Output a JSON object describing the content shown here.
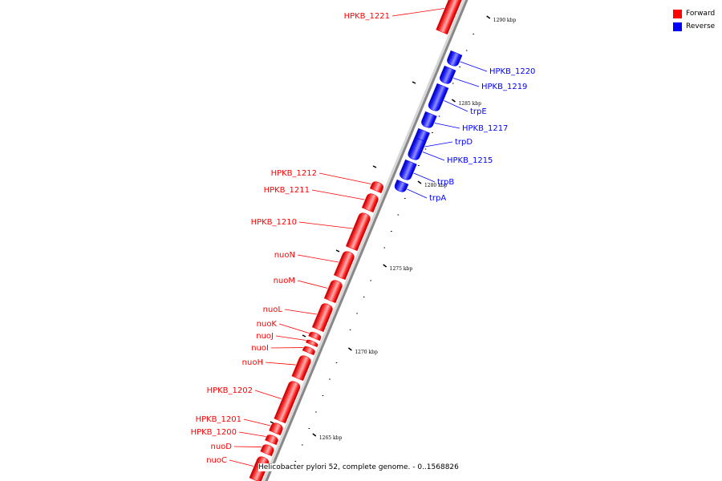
{
  "colors": {
    "forward": "#ff0000",
    "reverse": "#0000ff",
    "backbone": "#888888"
  },
  "legend": [
    {
      "label": "Forward",
      "color": "#ff0000"
    },
    {
      "label": "Reverse",
      "color": "#0000ff"
    }
  ],
  "caption": "Helicobacter pylori 52, complete genome. - 0..1568826",
  "ticks": [
    {
      "label": "1290 kbp"
    },
    {
      "label": "1285 kbp"
    },
    {
      "label": "1280 kbp"
    },
    {
      "label": "1275 kbp"
    },
    {
      "label": "1270 kbp"
    },
    {
      "label": "1265 kbp"
    }
  ],
  "genes": [
    {
      "name": "HPKB_1221",
      "strand": "forward"
    },
    {
      "name": "HPKB_1220",
      "strand": "reverse"
    },
    {
      "name": "HPKB_1219",
      "strand": "reverse"
    },
    {
      "name": "trpE",
      "strand": "reverse"
    },
    {
      "name": "HPKB_1217",
      "strand": "reverse"
    },
    {
      "name": "trpD",
      "strand": "reverse"
    },
    {
      "name": "HPKB_1215",
      "strand": "reverse"
    },
    {
      "name": "trpB",
      "strand": "reverse"
    },
    {
      "name": "trpA",
      "strand": "reverse"
    },
    {
      "name": "HPKB_1212",
      "strand": "forward"
    },
    {
      "name": "HPKB_1211",
      "strand": "forward"
    },
    {
      "name": "HPKB_1210",
      "strand": "forward"
    },
    {
      "name": "nuoN",
      "strand": "forward"
    },
    {
      "name": "nuoM",
      "strand": "forward"
    },
    {
      "name": "nuoL",
      "strand": "forward"
    },
    {
      "name": "nuoK",
      "strand": "forward"
    },
    {
      "name": "nuoJ",
      "strand": "forward"
    },
    {
      "name": "nuoI",
      "strand": "forward"
    },
    {
      "name": "nuoH",
      "strand": "forward"
    },
    {
      "name": "HPKB_1202",
      "strand": "forward"
    },
    {
      "name": "HPKB_1201",
      "strand": "forward"
    },
    {
      "name": "HPKB_1200",
      "strand": "forward"
    },
    {
      "name": "nuoD",
      "strand": "forward"
    },
    {
      "name": "nuoC",
      "strand": "forward"
    }
  ]
}
